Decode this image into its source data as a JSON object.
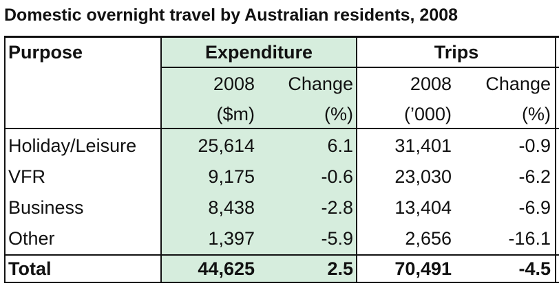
{
  "title": "Domestic overnight travel by Australian residents, 2008",
  "colors": {
    "expenditure_band": "#d6eddd",
    "rules": "#111111"
  },
  "table": {
    "col_purpose": "Purpose",
    "group_expenditure": "Expenditure",
    "group_trips": "Trips",
    "sub_year": "2008",
    "sub_change": "Change",
    "unit_exp_value": "($m)",
    "unit_pct": "(%)",
    "unit_trips_value": "(’000)",
    "rows": [
      {
        "purpose": "Holiday/Leisure",
        "exp_2008": "25,614",
        "exp_change": "6.1",
        "trips_2008": "31,401",
        "trips_change": "-0.9"
      },
      {
        "purpose": "VFR",
        "exp_2008": "9,175",
        "exp_change": "-0.6",
        "trips_2008": "23,030",
        "trips_change": "-6.2"
      },
      {
        "purpose": "Business",
        "exp_2008": "8,438",
        "exp_change": "-2.8",
        "trips_2008": "13,404",
        "trips_change": "-6.9"
      },
      {
        "purpose": "Other",
        "exp_2008": "1,397",
        "exp_change": "-5.9",
        "trips_2008": "2,656",
        "trips_change": "-16.1"
      }
    ],
    "total": {
      "purpose": "Total",
      "exp_2008": "44,625",
      "exp_change": "2.5",
      "trips_2008": "70,491",
      "trips_change": "-4.5"
    }
  }
}
